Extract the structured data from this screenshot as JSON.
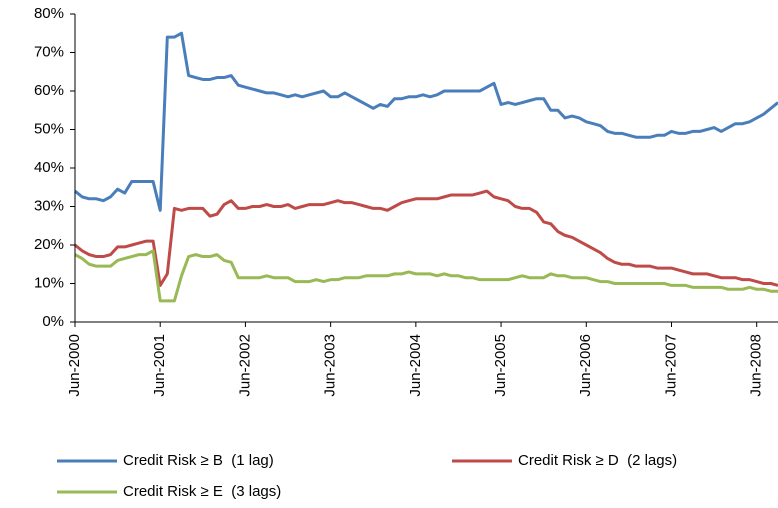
{
  "chart_data": {
    "type": "line",
    "categories": [
      "Jun-2000",
      null,
      null,
      null,
      null,
      null,
      null,
      null,
      null,
      null,
      null,
      null,
      "Jun-2001",
      null,
      null,
      null,
      null,
      null,
      null,
      null,
      null,
      null,
      null,
      null,
      "Jun-2002",
      null,
      null,
      null,
      null,
      null,
      null,
      null,
      null,
      null,
      null,
      null,
      "Jun-2003",
      null,
      null,
      null,
      null,
      null,
      null,
      null,
      null,
      null,
      null,
      null,
      "Jun-2004",
      null,
      null,
      null,
      null,
      null,
      null,
      null,
      null,
      null,
      null,
      null,
      "Jun-2005",
      null,
      null,
      null,
      null,
      null,
      null,
      null,
      null,
      null,
      null,
      null,
      "Jun-2006",
      null,
      null,
      null,
      null,
      null,
      null,
      null,
      null,
      null,
      null,
      null,
      "Jun-2007",
      null,
      null,
      null,
      null,
      null,
      null,
      null,
      null,
      null,
      null,
      null,
      "Jun-2008",
      null,
      null,
      null
    ],
    "series": [
      {
        "name": "Credit Risk ≥ B  (1 lag)",
        "color": "#4a7ebb",
        "values": [
          34,
          32.5,
          32,
          32,
          31.5,
          32.5,
          34.5,
          33.5,
          36.5,
          36.5,
          36.5,
          36.5,
          29,
          74,
          74,
          75,
          64,
          63.5,
          63,
          63,
          63.5,
          63.5,
          64,
          61.5,
          61,
          60.5,
          60,
          59.5,
          59.5,
          59,
          58.5,
          59,
          58.5,
          59,
          59.5,
          60,
          58.5,
          58.5,
          59.5,
          58.5,
          57.5,
          56.5,
          55.5,
          56.5,
          56,
          58,
          58,
          58.5,
          58.5,
          59,
          58.5,
          59,
          60,
          60,
          60,
          60,
          60,
          60,
          61,
          62,
          56.5,
          57,
          56.5,
          57,
          57.5,
          58,
          58,
          55,
          55,
          53,
          53.5,
          53,
          52,
          51.5,
          51,
          49.5,
          49,
          49,
          48.5,
          48,
          48,
          48,
          48.5,
          48.5,
          49.5,
          49,
          49,
          49.5,
          49.5,
          50,
          50.5,
          49.5,
          50.5,
          51.5,
          51.5,
          52,
          53,
          54,
          55.5,
          57
        ]
      },
      {
        "name": "Credit Risk ≥ D  (2 lags)",
        "color": "#be4b48",
        "values": [
          20,
          18.5,
          17.5,
          17,
          17,
          17.5,
          19.5,
          19.5,
          20,
          20.5,
          21,
          21,
          9.5,
          12.5,
          29.5,
          29,
          29.5,
          29.5,
          29.5,
          27.5,
          28,
          30.5,
          31.5,
          29.5,
          29.5,
          30,
          30,
          30.5,
          30,
          30,
          30.5,
          29.5,
          30,
          30.5,
          30.5,
          30.5,
          31,
          31.5,
          31,
          31,
          30.5,
          30,
          29.5,
          29.5,
          29,
          30,
          31,
          31.5,
          32,
          32,
          32,
          32,
          32.5,
          33,
          33,
          33,
          33,
          33.5,
          34,
          32.5,
          32,
          31.5,
          30,
          29.5,
          29.5,
          28.5,
          26,
          25.5,
          23.5,
          22.5,
          22,
          21,
          20,
          19,
          18,
          16.5,
          15.5,
          15,
          15,
          14.5,
          14.5,
          14.5,
          14,
          14,
          14,
          13.5,
          13,
          12.5,
          12.5,
          12.5,
          12,
          11.5,
          11.5,
          11.5,
          11,
          11,
          10.5,
          10,
          10,
          9.5
        ]
      },
      {
        "name": "Credit Risk ≥ E  (3 lags)",
        "color": "#98b954",
        "values": [
          17.5,
          16.5,
          15,
          14.5,
          14.5,
          14.5,
          16,
          16.5,
          17,
          17.5,
          17.5,
          18.5,
          5.5,
          5.5,
          5.5,
          12,
          17,
          17.5,
          17,
          17,
          17.5,
          16,
          15.5,
          11.5,
          11.5,
          11.5,
          11.5,
          12,
          11.5,
          11.5,
          11.5,
          10.5,
          10.5,
          10.5,
          11,
          10.5,
          11,
          11,
          11.5,
          11.5,
          11.5,
          12,
          12,
          12,
          12,
          12.5,
          12.5,
          13,
          12.5,
          12.5,
          12.5,
          12,
          12.5,
          12,
          12,
          11.5,
          11.5,
          11,
          11,
          11,
          11,
          11,
          11.5,
          12,
          11.5,
          11.5,
          11.5,
          12.5,
          12,
          12,
          11.5,
          11.5,
          11.5,
          11,
          10.5,
          10.5,
          10,
          10,
          10,
          10,
          10,
          10,
          10,
          10,
          9.5,
          9.5,
          9.5,
          9,
          9,
          9,
          9,
          9,
          8.5,
          8.5,
          8.5,
          9,
          8.5,
          8.5,
          8,
          8
        ]
      }
    ],
    "ylim": [
      0,
      80
    ],
    "yticks": [
      {
        "value": 0,
        "label": "0%"
      },
      {
        "value": 10,
        "label": "10%"
      },
      {
        "value": 20,
        "label": "20%"
      },
      {
        "value": 30,
        "label": "30%"
      },
      {
        "value": 40,
        "label": "40%"
      },
      {
        "value": 50,
        "label": "50%"
      },
      {
        "value": 60,
        "label": "60%"
      },
      {
        "value": 70,
        "label": "70%"
      },
      {
        "value": 80,
        "label": "80%"
      }
    ],
    "grid": false,
    "legend": "bottom"
  }
}
